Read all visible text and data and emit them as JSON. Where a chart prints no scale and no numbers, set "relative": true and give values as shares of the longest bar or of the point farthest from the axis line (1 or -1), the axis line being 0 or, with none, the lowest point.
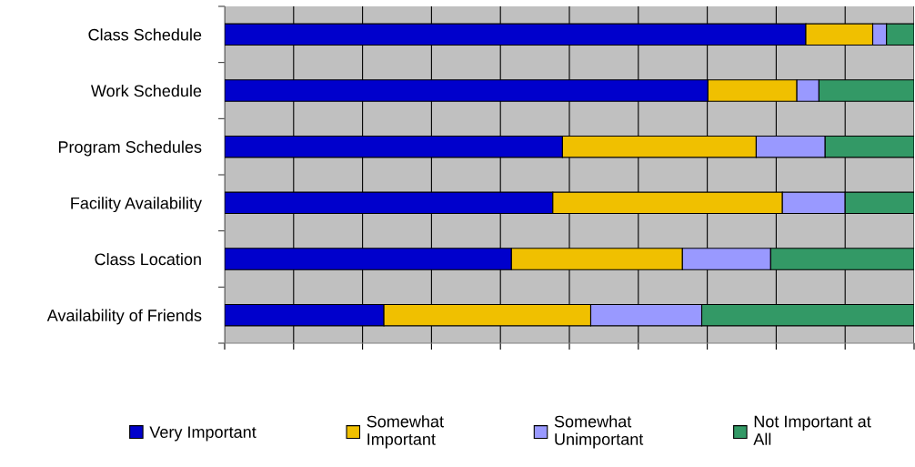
{
  "chart_data": {
    "type": "bar",
    "orientation": "horizontal",
    "stacked": true,
    "relative": true,
    "grid": "x",
    "legend": "bottom",
    "tick_labels": "y",
    "categories": [
      "Class Schedule",
      "Work Schedule",
      "Program Schedules",
      "Facility Availability",
      "Class Location",
      "Availability of Friends"
    ],
    "series": [
      {
        "name": "Very Important",
        "color": "#0000cc",
        "values": [
          0.843,
          0.701,
          0.49,
          0.476,
          0.416,
          0.231
        ]
      },
      {
        "name": "Somewhat Important",
        "color": "#f0c000",
        "values": [
          0.097,
          0.129,
          0.281,
          0.333,
          0.248,
          0.3
        ]
      },
      {
        "name": "Somewhat Unimportant",
        "color": "#9999ff",
        "values": [
          0.02,
          0.032,
          0.1,
          0.091,
          0.128,
          0.161
        ]
      },
      {
        "name": "Not Important at All",
        "color": "#339966",
        "values": [
          0.04,
          0.138,
          0.129,
          0.1,
          0.208,
          0.308
        ]
      }
    ]
  }
}
